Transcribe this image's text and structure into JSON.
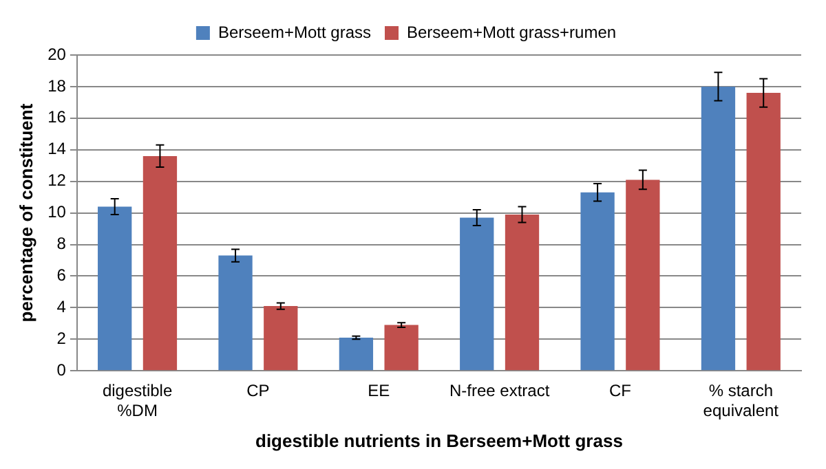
{
  "chart_data": {
    "type": "bar",
    "xlabel": "digestible nutrients in Berseem+Mott grass",
    "ylabel": "percentage of constituent",
    "categories": [
      "digestible %DM",
      "CP",
      "EE",
      "N-free extract",
      "CF",
      "% starch equivalent"
    ],
    "series": [
      {
        "name": "Berseem+Mott grass",
        "color": "#4f81bd",
        "values": [
          10.4,
          7.3,
          2.1,
          9.7,
          11.3,
          18.0
        ],
        "errors": [
          0.5,
          0.4,
          0.1,
          0.5,
          0.55,
          0.9
        ]
      },
      {
        "name": "Berseem+Mott grass+rumen",
        "color": "#c0504d",
        "values": [
          13.6,
          4.1,
          2.9,
          9.9,
          12.1,
          17.6
        ],
        "errors": [
          0.7,
          0.2,
          0.15,
          0.5,
          0.6,
          0.9
        ]
      }
    ],
    "ylim": [
      0,
      20
    ],
    "yticks": [
      0,
      2,
      4,
      6,
      8,
      10,
      12,
      14,
      16,
      18,
      20
    ],
    "grid": "y",
    "legend": "top"
  }
}
